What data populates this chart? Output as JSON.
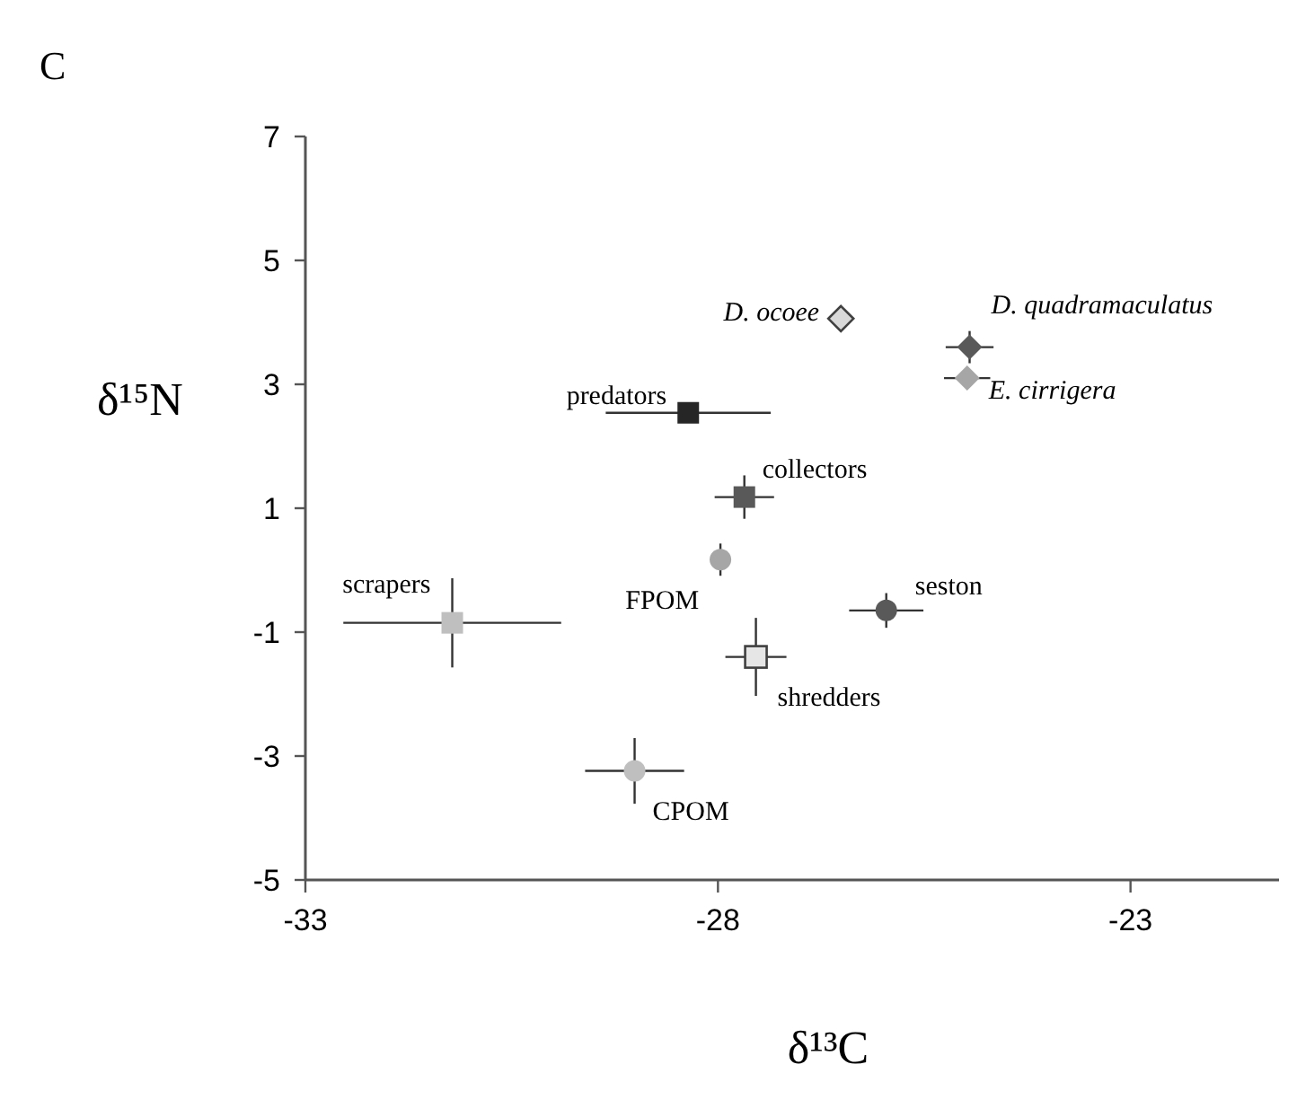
{
  "chart_data": {
    "type": "scatter",
    "xlabel": "δ¹³C",
    "ylabel": "δ¹⁵N",
    "annotations": [
      "C"
    ],
    "xlim": [
      -33,
      -21.2
    ],
    "xticks": [
      -33,
      -28,
      -23
    ],
    "ylim": [
      -5,
      7
    ],
    "yticks": [
      -5,
      -3,
      -1,
      1,
      3,
      5,
      7
    ],
    "grid": false,
    "series": [
      {
        "name": "D. ocoee",
        "color": "#d9d9d9",
        "marker": "diamond",
        "x": [
          -26.51
        ],
        "values": [
          4.06
        ]
      },
      {
        "name": "D. quadramaculatus",
        "color": "#595959",
        "marker": "diamond",
        "x": [
          -24.95
        ],
        "values": [
          3.6
        ],
        "errors": [
          0.26
        ],
        "xerrors": [
          0.29
        ]
      },
      {
        "name": "E. cirrigera",
        "color": "#a6a6a6",
        "marker": "diamond",
        "x": [
          -24.98
        ],
        "values": [
          3.1
        ],
        "xerrors": [
          0.28
        ]
      },
      {
        "name": "predators",
        "color": "#262626",
        "marker": "square",
        "x": [
          -28.36
        ],
        "values": [
          2.54
        ],
        "xerrors": [
          1.0
        ]
      },
      {
        "name": "collectors",
        "color": "#595959",
        "marker": "square",
        "x": [
          -27.68
        ],
        "values": [
          1.18
        ],
        "errors": [
          0.35
        ],
        "xerrors": [
          0.36
        ]
      },
      {
        "name": "FPOM",
        "color": "#a6a6a6",
        "marker": "circle",
        "x": [
          -27.97
        ],
        "values": [
          0.17
        ],
        "errors": [
          0.26
        ]
      },
      {
        "name": "scrapers",
        "color": "#bfbfbf",
        "marker": "square",
        "x": [
          -31.22
        ],
        "values": [
          -0.85
        ],
        "errors": [
          0.72
        ],
        "xerrors": [
          1.32
        ]
      },
      {
        "name": "seston",
        "color": "#595959",
        "marker": "circle",
        "x": [
          -25.96
        ],
        "values": [
          -0.65
        ],
        "errors": [
          0.28
        ],
        "xerrors": [
          0.45
        ]
      },
      {
        "name": "shredders",
        "color": "#e6e6e6",
        "marker": "square",
        "x": [
          -27.54
        ],
        "values": [
          -1.4
        ],
        "errors": [
          0.63
        ],
        "xerrors": [
          0.37
        ]
      },
      {
        "name": "CPOM",
        "color": "#bfbfbf",
        "marker": "circle",
        "x": [
          -29.01
        ],
        "values": [
          -3.24
        ],
        "errors": [
          0.53
        ],
        "xerrors": [
          0.6
        ]
      }
    ]
  }
}
